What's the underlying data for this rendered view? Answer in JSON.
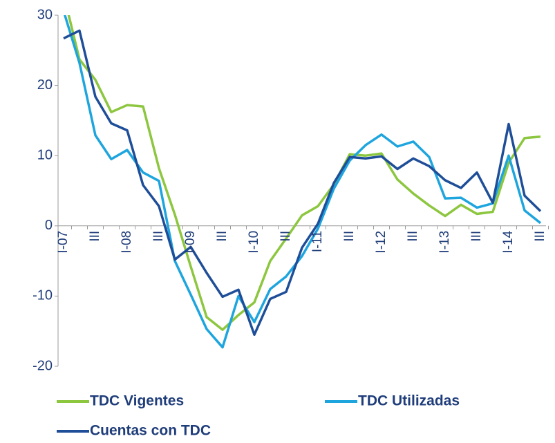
{
  "chart_data": {
    "type": "line",
    "categories": [
      "I-07",
      null,
      "III",
      null,
      "I-08",
      null,
      "III",
      null,
      "I-09",
      null,
      "III",
      null,
      "I-10",
      null,
      "III",
      null,
      "I-11",
      null,
      "III",
      null,
      "I-12",
      null,
      "III",
      null,
      "I-13",
      null,
      "III",
      null,
      "I-14",
      null,
      "III"
    ],
    "series": [
      {
        "name": "TDC Vigentes",
        "color": "#8dc63f",
        "values": [
          33,
          23.7,
          20.8,
          16.2,
          17.2,
          17.0,
          8.2,
          1.6,
          -5.8,
          -13,
          -14.8,
          -12.7,
          -10.9,
          -5,
          -1.8,
          1.5,
          2.8,
          5.9,
          10.2,
          10,
          10.3,
          6.6,
          4.6,
          2.9,
          1.4,
          3,
          1.7,
          2,
          9,
          12.5,
          12.7
        ]
      },
      {
        "name": "TDC Utilizadas",
        "color": "#1ea5de",
        "values": [
          30.6,
          23.2,
          12.9,
          9.5,
          10.8,
          7.6,
          6.4,
          -5,
          -9.8,
          -14.7,
          -17.3,
          -10,
          -13.7,
          -9,
          -7.2,
          -4.3,
          -0.4,
          5.3,
          9.3,
          11.5,
          13,
          11.3,
          12,
          9.8,
          3.9,
          4,
          2.6,
          3.2,
          10,
          2.2,
          0.4
        ]
      },
      {
        "name": "Cuentas con TDC",
        "color": "#1f4e99",
        "values": [
          26.7,
          27.8,
          18.4,
          14.6,
          13.6,
          5.8,
          2.8,
          -4.8,
          -3,
          -6.7,
          -10.1,
          -9.1,
          -15.5,
          -10.4,
          -9.4,
          -3.1,
          0.3,
          6.1,
          9.8,
          9.6,
          9.9,
          8.1,
          9.6,
          8.5,
          6.5,
          5.4,
          7.6,
          3.3,
          14.5,
          4.3,
          2.1
        ]
      }
    ],
    "ylim": [
      -20,
      30
    ],
    "yticks": [
      -20,
      -10,
      0,
      10,
      20,
      30
    ]
  }
}
